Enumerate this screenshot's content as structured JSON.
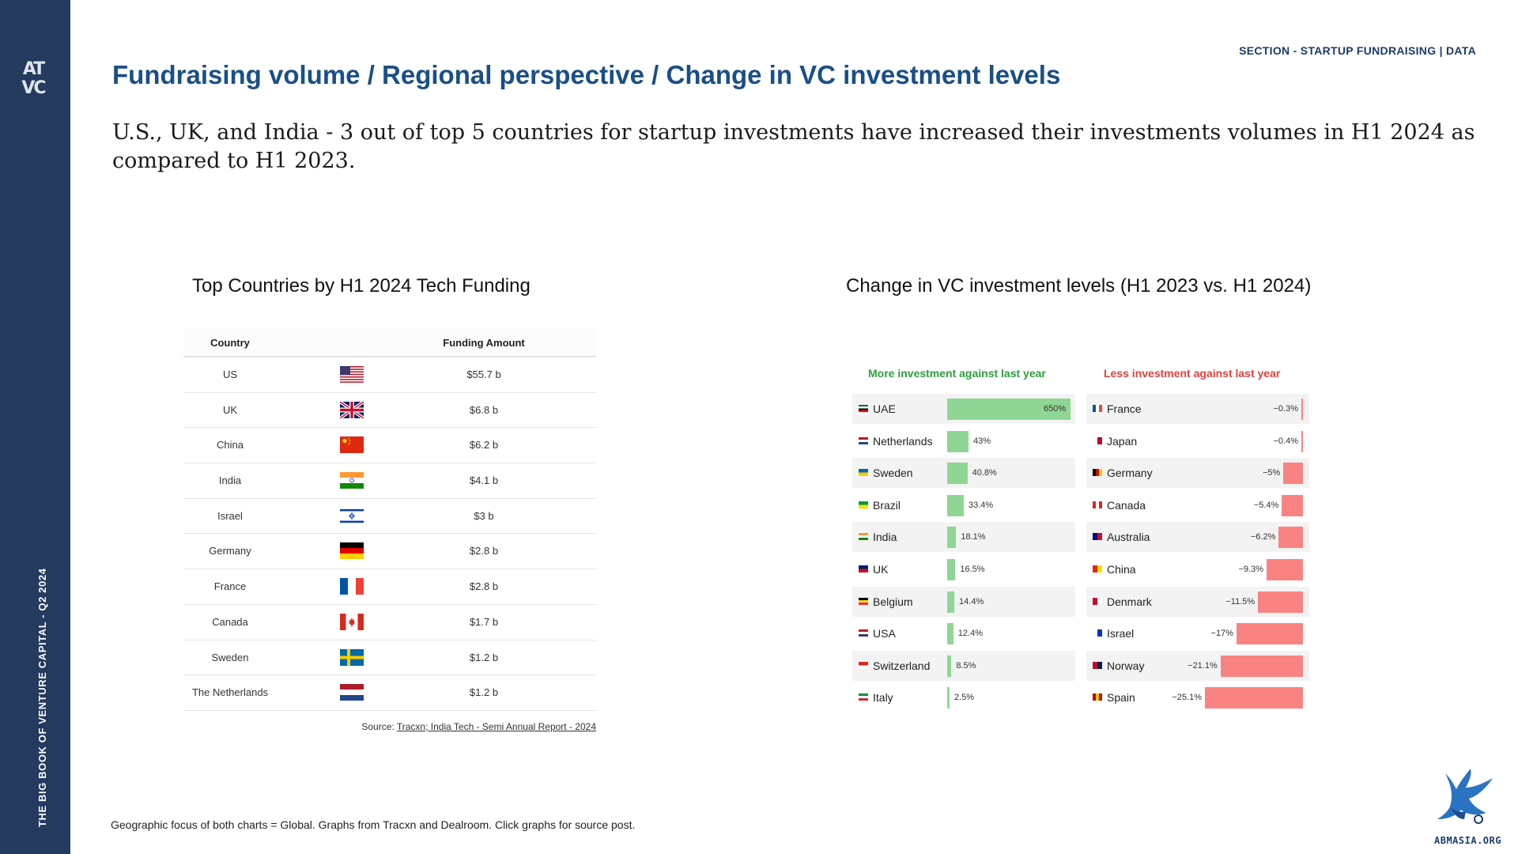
{
  "sidebar": {
    "logo_line1": "AT",
    "logo_line2": "VC",
    "vertical_text": "THE BIG BOOK OF VENTURE CAPITAL - Q2 2024"
  },
  "header": {
    "section_label": "SECTION - STARTUP FUNDRAISING | DATA",
    "title": "Fundraising volume / Regional perspective / Change in VC investment levels",
    "subtitle": "U.S., UK, and India - 3 out of top 5 countries for startup investments have increased their investments volumes in H1 2024 as compared to H1 2023."
  },
  "footer": {
    "note": "Geographic focus of both charts = Global. Graphs from Tracxn and Dealroom. Click graphs for source post.",
    "brand": "ABMASIA.ORG"
  },
  "colors": {
    "sidebar": "#243a5e",
    "title": "#1a4f86",
    "positive_bar": "#8fd694",
    "negative_bar": "#f98383",
    "positive_head": "#2e9e3e",
    "negative_head": "#e2413f"
  },
  "chart_data": [
    {
      "type": "table",
      "title": "Top Countries by H1 2024 Tech Funding",
      "columns": [
        "Country",
        "Funding Amount"
      ],
      "rows": [
        {
          "country": "US",
          "flag": "us-flag",
          "amount": "$55.7 b"
        },
        {
          "country": "UK",
          "flag": "uk-flag",
          "amount": "$6.8 b"
        },
        {
          "country": "China",
          "flag": "china-flag",
          "amount": "$6.2 b"
        },
        {
          "country": "India",
          "flag": "india-flag",
          "amount": "$4.1 b"
        },
        {
          "country": "Israel",
          "flag": "israel-flag",
          "amount": "$3 b"
        },
        {
          "country": "Germany",
          "flag": "germany-flag",
          "amount": "$2.8 b"
        },
        {
          "country": "France",
          "flag": "france-flag",
          "amount": "$2.8 b"
        },
        {
          "country": "Canada",
          "flag": "canada-flag",
          "amount": "$1.7 b"
        },
        {
          "country": "Sweden",
          "flag": "sweden-flag",
          "amount": "$1.2 b"
        },
        {
          "country": "The Netherlands",
          "flag": "netherlands-flag",
          "amount": "$1.2 b"
        }
      ],
      "source_prefix": "Source: ",
      "source_link": "Tracxn; India Tech - Semi Annual Report - 2024"
    },
    {
      "type": "bar",
      "title": "Change in VC investment levels (H1 2023 vs. H1 2024)",
      "panels": [
        {
          "name": "More investment against last year",
          "categories": [
            "UAE",
            "Netherlands",
            "Sweden",
            "Brazil",
            "India",
            "UK",
            "Belgium",
            "USA",
            "Switzerland",
            "Italy"
          ],
          "values": [
            650,
            43,
            40.8,
            33.4,
            18.1,
            16.5,
            14.4,
            12.4,
            8.5,
            2.5
          ],
          "labels": [
            "650%",
            "43%",
            "40.8%",
            "33.4%",
            "18.1%",
            "16.5%",
            "14.4%",
            "12.4%",
            "8.5%",
            "2.5%"
          ]
        },
        {
          "name": "Less investment against last year",
          "categories": [
            "France",
            "Japan",
            "Germany",
            "Canada",
            "Australia",
            "China",
            "Denmark",
            "Israel",
            "Norway",
            "Spain"
          ],
          "values": [
            -0.3,
            -0.4,
            -5,
            -5.4,
            -6.2,
            -9.3,
            -11.5,
            -17,
            -21.1,
            -25.1
          ],
          "labels": [
            "−0.3%",
            "−0.4%",
            "−5%",
            "−5.4%",
            "−6.2%",
            "−9.3%",
            "−11.5%",
            "−17%",
            "−21.1%",
            "−25.1%"
          ]
        }
      ]
    }
  ]
}
